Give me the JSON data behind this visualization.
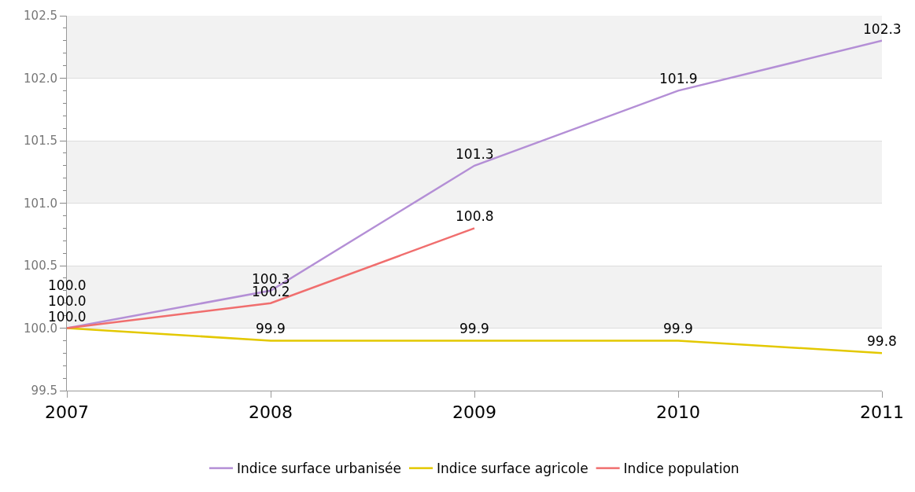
{
  "chart_data": {
    "type": "line",
    "x": [
      2007,
      2008,
      2009,
      2010,
      2011
    ],
    "series": [
      {
        "name": "Indice surface urbanisée",
        "color": "#b48fd6",
        "values": [
          100.0,
          100.3,
          101.3,
          101.9,
          102.3
        ],
        "value_labels": [
          "100.0",
          "100.3",
          "101.3",
          "101.9",
          "102.3"
        ]
      },
      {
        "name": "Indice surface agricole",
        "color": "#e3c800",
        "values": [
          100.0,
          99.9,
          99.9,
          99.9,
          99.8
        ],
        "value_labels": [
          "100.0",
          "99.9",
          "99.9",
          "99.9",
          "99.8"
        ]
      },
      {
        "name": "Indice population",
        "color": "#f06e6e",
        "values": [
          100.0,
          100.2,
          100.8,
          null,
          null
        ],
        "value_labels": [
          "100.0",
          "100.2",
          "100.8",
          null,
          null
        ]
      }
    ],
    "xlim": [
      2007,
      2011
    ],
    "xticks": [
      2007,
      2008,
      2009,
      2010,
      2011
    ],
    "ylim": [
      99.5,
      102.5
    ],
    "yticks": [
      99.5,
      {
        "value": 100,
        "label": "100.0"
      },
      100.5,
      {
        "value": 101,
        "label": "101.0"
      },
      101.5,
      {
        "value": 102,
        "label": "102.0"
      },
      102.5
    ],
    "grid": "y",
    "legend": "bottom",
    "marker": "none",
    "line_style": "solid"
  }
}
